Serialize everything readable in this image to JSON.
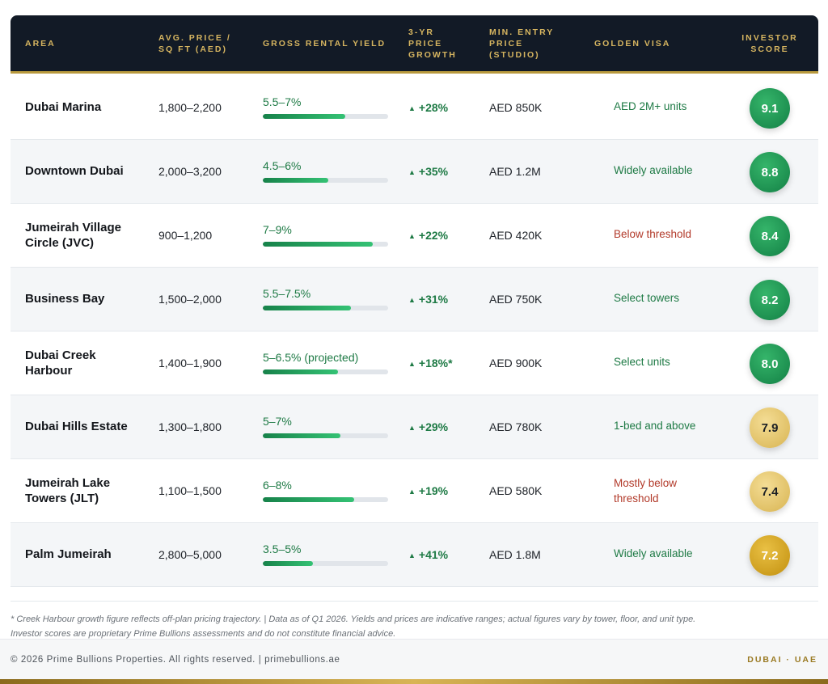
{
  "headers": {
    "area": "AREA",
    "price": [
      "AVG. PRICE /",
      "SQ FT (AED)"
    ],
    "yield": "GROSS RENTAL YIELD",
    "growth": [
      "3-YR",
      "PRICE",
      "GROWTH"
    ],
    "entry": [
      "MIN. ENTRY",
      "PRICE",
      "(STUDIO)"
    ],
    "visa": "GOLDEN VISA",
    "score": [
      "INVESTOR",
      "SCORE"
    ]
  },
  "rows": [
    {
      "area": [
        "Dubai Marina"
      ],
      "price": "1,800–2,200",
      "yield": "5.5–7%",
      "yield_fill": 0.66,
      "growth": "+28%",
      "entry": "AED 850K",
      "visa": [
        "AED 2M+ units"
      ],
      "visa_status": "green",
      "score": "9.1",
      "score_tone": "green"
    },
    {
      "area": [
        "Downtown Dubai"
      ],
      "price": "2,000–3,200",
      "yield": "4.5–6%",
      "yield_fill": 0.52,
      "growth": "+35%",
      "entry": "AED 1.2M",
      "visa": [
        "Widely available"
      ],
      "visa_status": "green",
      "score": "8.8",
      "score_tone": "green"
    },
    {
      "area": [
        "Jumeirah Village",
        "Circle (JVC)"
      ],
      "price": "900–1,200",
      "yield": "7–9%",
      "yield_fill": 0.88,
      "growth": "+22%",
      "entry": "AED 420K",
      "visa": [
        "Below threshold"
      ],
      "visa_status": "red",
      "score": "8.4",
      "score_tone": "green"
    },
    {
      "area": [
        "Business Bay"
      ],
      "price": "1,500–2,000",
      "yield": "5.5–7.5%",
      "yield_fill": 0.7,
      "growth": "+31%",
      "entry": "AED 750K",
      "visa": [
        "Select towers"
      ],
      "visa_status": "green",
      "score": "8.2",
      "score_tone": "green"
    },
    {
      "area": [
        "Dubai Creek",
        "Harbour"
      ],
      "price": "1,400–1,900",
      "yield": "5–6.5% (projected)",
      "yield_fill": 0.6,
      "growth": "+18%*",
      "entry": "AED 900K",
      "visa": [
        "Select units"
      ],
      "visa_status": "green",
      "score": "8.0",
      "score_tone": "green"
    },
    {
      "area": [
        "Dubai Hills Estate"
      ],
      "price": "1,300–1,800",
      "yield": "5–7%",
      "yield_fill": 0.62,
      "growth": "+29%",
      "entry": "AED 780K",
      "visa": [
        "1-bed and above"
      ],
      "visa_status": "green",
      "score": "7.9",
      "score_tone": "gold-light"
    },
    {
      "area": [
        "Jumeirah Lake",
        "Towers (JLT)"
      ],
      "price": "1,100–1,500",
      "yield": "6–8%",
      "yield_fill": 0.73,
      "growth": "+19%",
      "entry": "AED 580K",
      "visa": [
        "Mostly below",
        "threshold"
      ],
      "visa_status": "red",
      "score": "7.4",
      "score_tone": "gold-light"
    },
    {
      "area": [
        "Palm Jumeirah"
      ],
      "price": "2,800–5,000",
      "yield": "3.5–5%",
      "yield_fill": 0.4,
      "growth": "+41%",
      "entry": "AED 1.8M",
      "visa": [
        "Widely available"
      ],
      "visa_status": "green",
      "score": "7.2",
      "score_tone": "gold"
    }
  ],
  "growth_arrow": "▲",
  "footnote": [
    "* Creek Harbour growth figure reflects off-plan pricing trajectory.  |  Data as of Q1 2026. Yields and prices are indicative ranges; actual figures vary by tower, floor, and unit type.",
    "Investor scores are proprietary Prime Bullions assessments and do not constitute financial advice."
  ],
  "footer": {
    "copyright": "© 2026 Prime Bullions Properties. All rights reserved.  |  primebullions.ae",
    "location": "DUBAI · UAE"
  },
  "colors": {
    "header_bg": "#121a26",
    "header_text": "#d6b560",
    "positive": "#1e7a45",
    "negative": "#b23a2a",
    "score_green": "#138045",
    "score_gold": "#c2900f"
  }
}
